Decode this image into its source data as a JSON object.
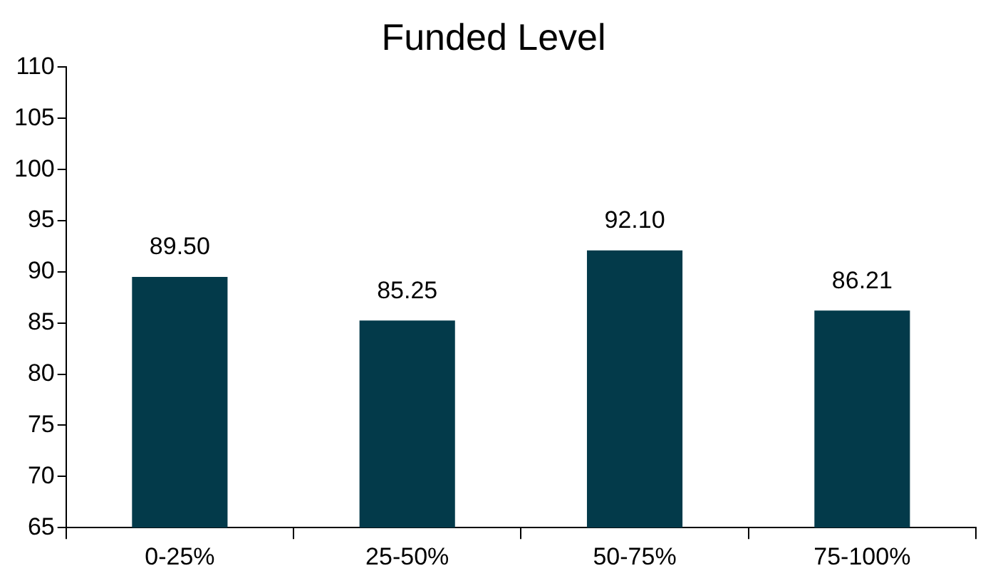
{
  "chart_data": {
    "type": "bar",
    "title": "Funded Level",
    "categories": [
      "0-25%",
      "25-50%",
      "50-75%",
      "75-100%"
    ],
    "values": [
      89.5,
      85.25,
      92.1,
      86.21
    ],
    "value_labels": [
      "89.50",
      "85.25",
      "92.10",
      "86.21"
    ],
    "color": "#033a4a",
    "ylim": [
      65,
      110
    ],
    "yticks": [
      65,
      70,
      75,
      80,
      85,
      90,
      95,
      100,
      105,
      110
    ],
    "grid": false,
    "legend": false
  }
}
